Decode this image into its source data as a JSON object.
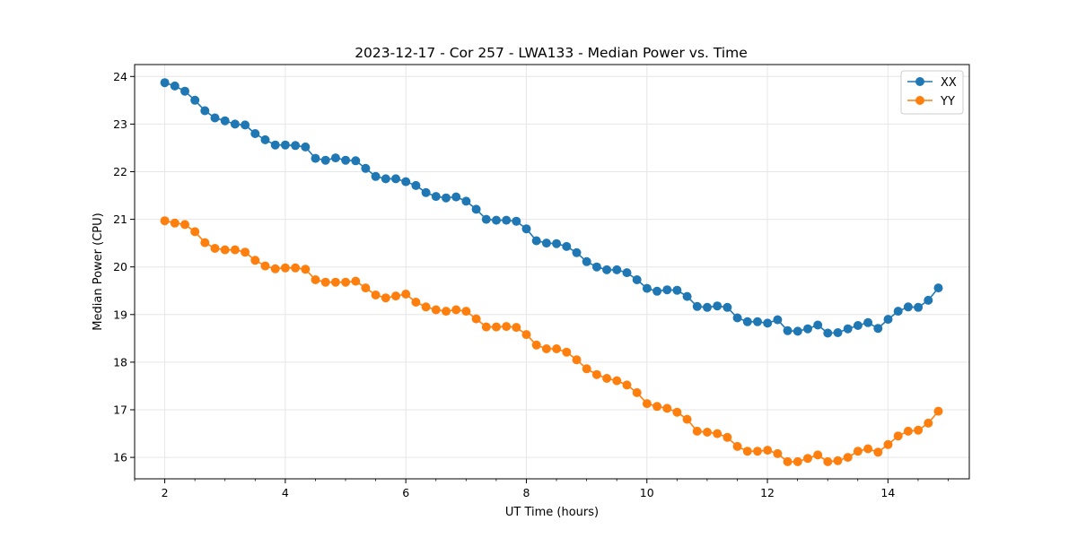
{
  "colors": {
    "xx": "#1f77b4",
    "yy": "#ff7f0e",
    "grid": "#e6e6e6"
  },
  "chart_data": {
    "type": "line",
    "title": "2023-12-17 - Cor 257 - LWA133 - Median Power vs. Time",
    "xlabel": "UT Time (hours)",
    "ylabel": "Median Power (CPU)",
    "xlim": [
      1.5,
      15.35
    ],
    "ylim": [
      15.55,
      24.25
    ],
    "xticks": [
      2,
      4,
      6,
      8,
      10,
      12,
      14
    ],
    "yticks": [
      16,
      17,
      18,
      19,
      20,
      21,
      22,
      23,
      24
    ],
    "grid": true,
    "legend_location": "top-right",
    "x_start": 2.0,
    "x_step": 0.1667,
    "series": [
      {
        "name": "XX",
        "color": "#1f77b4",
        "values": [
          23.87,
          23.8,
          23.69,
          23.5,
          23.28,
          23.13,
          23.07,
          23.0,
          22.98,
          22.8,
          22.67,
          22.56,
          22.56,
          22.55,
          22.52,
          22.28,
          22.24,
          22.29,
          22.24,
          22.23,
          22.07,
          21.9,
          21.85,
          21.85,
          21.79,
          21.71,
          21.56,
          21.48,
          21.45,
          21.47,
          21.38,
          21.21,
          21.0,
          20.98,
          20.98,
          20.96,
          20.8,
          20.55,
          20.5,
          20.49,
          20.43,
          20.3,
          20.11,
          20.0,
          19.94,
          19.94,
          19.88,
          19.73,
          19.55,
          19.49,
          19.52,
          19.51,
          19.38,
          19.17,
          19.15,
          19.18,
          19.15,
          18.93,
          18.85,
          18.85,
          18.82,
          18.89,
          18.66,
          18.65,
          18.7,
          18.78,
          18.61,
          18.62,
          18.7,
          18.77,
          18.83,
          18.71,
          18.9,
          19.07,
          19.16,
          19.15,
          19.3,
          19.56
        ]
      },
      {
        "name": "YY",
        "color": "#ff7f0e",
        "values": [
          20.97,
          20.92,
          20.89,
          20.74,
          20.51,
          20.39,
          20.36,
          20.36,
          20.31,
          20.14,
          20.02,
          19.96,
          19.98,
          19.98,
          19.95,
          19.73,
          19.68,
          19.68,
          19.68,
          19.7,
          19.56,
          19.41,
          19.35,
          19.39,
          19.43,
          19.26,
          19.16,
          19.1,
          19.07,
          19.1,
          19.07,
          18.91,
          18.74,
          18.74,
          18.75,
          18.73,
          18.58,
          18.36,
          18.28,
          18.28,
          18.21,
          18.05,
          17.86,
          17.74,
          17.66,
          17.61,
          17.52,
          17.36,
          17.13,
          17.07,
          17.03,
          16.95,
          16.8,
          16.55,
          16.53,
          16.5,
          16.42,
          16.23,
          16.13,
          16.13,
          16.15,
          16.08,
          15.91,
          15.91,
          15.98,
          16.05,
          15.91,
          15.93,
          16.0,
          16.13,
          16.18,
          16.11,
          16.27,
          16.45,
          16.55,
          16.57,
          16.72,
          16.97
        ]
      }
    ]
  }
}
